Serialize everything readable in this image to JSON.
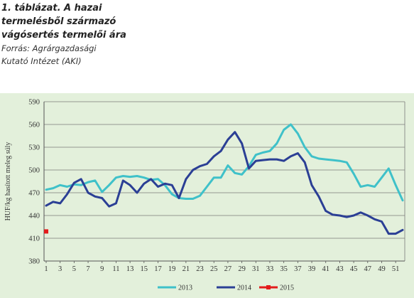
{
  "caption": {
    "title_line1": "1. táblázat. A hazai",
    "title_line2": "termelésből származó",
    "title_line3": "vágósertés termelői ára",
    "source_line1": "Forrás: Agrárgazdasági",
    "source_line2": "Kutató Intézet (AKI)"
  },
  "chart_data": {
    "type": "line",
    "ylabel": "HUF/kg hasított meleg súly",
    "xlabel": "",
    "ylim": [
      380,
      590
    ],
    "yticks": [
      380,
      410,
      440,
      470,
      500,
      530,
      560,
      590
    ],
    "xlim": [
      1,
      52
    ],
    "xticks": [
      "1",
      "3",
      "5",
      "7",
      "9",
      "11",
      "13",
      "15",
      "17",
      "19",
      "21",
      "23",
      "25",
      "27",
      "29",
      "31",
      "33",
      "35",
      "37",
      "39",
      "41",
      "43",
      "45",
      "47",
      "49",
      "51"
    ],
    "grid": true,
    "legend_position": "bottom",
    "series": [
      {
        "name": "2013",
        "color": "#3fc1c9",
        "x": [
          1,
          2,
          3,
          4,
          5,
          6,
          7,
          8,
          9,
          10,
          11,
          12,
          13,
          14,
          15,
          16,
          17,
          18,
          19,
          20,
          21,
          22,
          23,
          24,
          25,
          26,
          27,
          28,
          29,
          30,
          31,
          32,
          33,
          34,
          35,
          36,
          37,
          38,
          39,
          40,
          41,
          42,
          43,
          44,
          45,
          46,
          47,
          48,
          49,
          50,
          51,
          52
        ],
        "y": [
          474,
          476,
          480,
          478,
          481,
          480,
          484,
          486,
          471,
          480,
          490,
          492,
          491,
          492,
          490,
          487,
          488,
          480,
          468,
          463,
          462,
          462,
          466,
          478,
          490,
          490,
          506,
          496,
          494,
          505,
          520,
          523,
          525,
          535,
          553,
          560,
          548,
          530,
          518,
          515,
          514,
          513,
          512,
          510,
          495,
          478,
          480,
          478,
          490,
          502,
          480,
          460
        ]
      },
      {
        "name": "2014",
        "color": "#2b3f95",
        "x": [
          1,
          2,
          3,
          4,
          5,
          6,
          7,
          8,
          9,
          10,
          11,
          12,
          13,
          14,
          15,
          16,
          17,
          18,
          19,
          20,
          21,
          22,
          23,
          24,
          25,
          26,
          27,
          28,
          29,
          30,
          31,
          32,
          33,
          34,
          35,
          36,
          37,
          38,
          39,
          40,
          41,
          42,
          43,
          44,
          45,
          46,
          47,
          48,
          49,
          50,
          51,
          52
        ],
        "y": [
          453,
          458,
          456,
          468,
          483,
          488,
          470,
          465,
          463,
          452,
          456,
          486,
          480,
          470,
          482,
          488,
          478,
          482,
          480,
          463,
          488,
          500,
          505,
          508,
          518,
          525,
          540,
          550,
          535,
          502,
          512,
          513,
          514,
          514,
          512,
          518,
          522,
          510,
          480,
          465,
          446,
          441,
          440,
          438,
          440,
          444,
          440,
          435,
          432,
          416,
          416,
          421
        ]
      },
      {
        "name": "2015",
        "color": "#e31b1b",
        "x": [
          1
        ],
        "y": [
          419
        ]
      }
    ]
  }
}
